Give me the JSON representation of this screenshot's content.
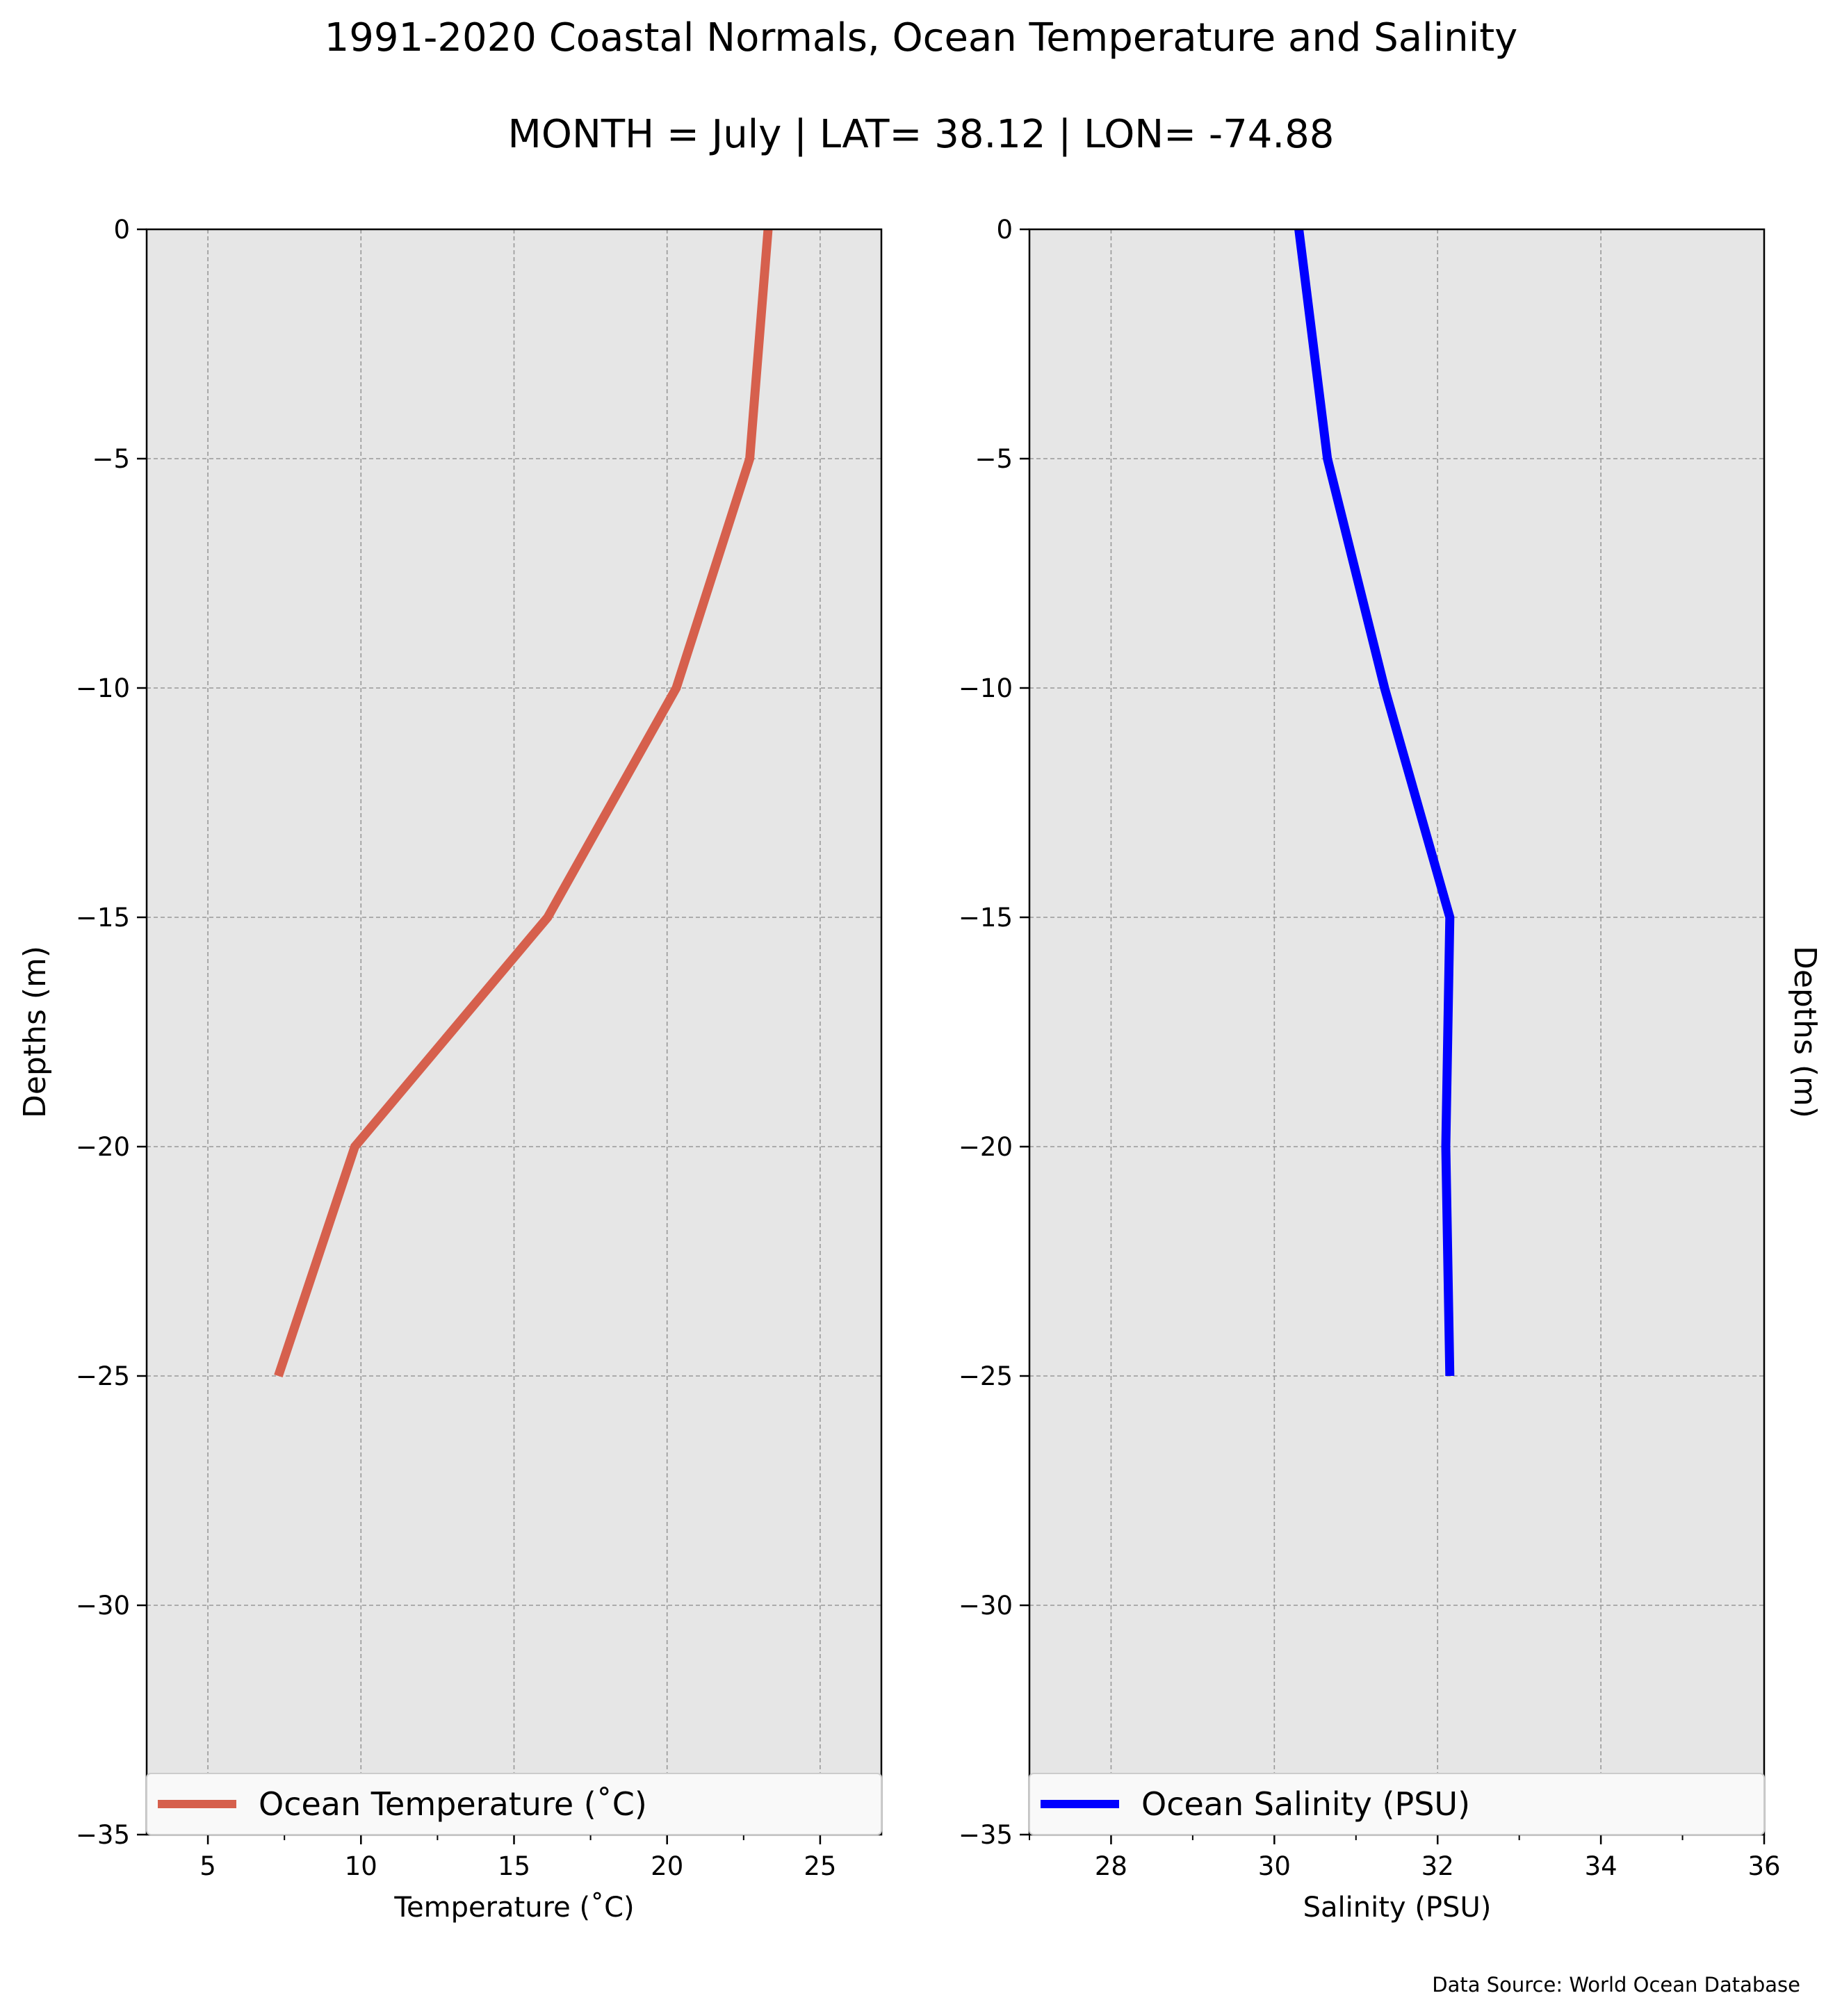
{
  "figure": {
    "title": "1991-2020 Coastal Normals, Ocean Temperature and Salinity",
    "subtitle": "MONTH = July | LAT= 38.12 | LON= -74.88",
    "footer": "Data Source: World Ocean Database"
  },
  "chart_data": [
    {
      "type": "line",
      "xlabel": "Temperature ($^\\circ$C)",
      "ylabel": "Depths (m)",
      "xlabel_display": "Temperature (˚C)",
      "xlim": [
        3,
        27
      ],
      "ylim": [
        -35,
        0
      ],
      "xticks": [
        5,
        10,
        15,
        20,
        25
      ],
      "xtick_labels": [
        "5",
        "10",
        "15",
        "20",
        "25"
      ],
      "yticks": [
        0,
        -5,
        -10,
        -15,
        -20,
        -25,
        -30,
        -35
      ],
      "ytick_labels": [
        "0",
        "−5",
        "−10",
        "−15",
        "−20",
        "−25",
        "−30",
        "−35"
      ],
      "grid": true,
      "legend": "lower center",
      "series": [
        {
          "name": "Ocean Temperature (˚C)",
          "color": "#d6604d",
          "x": [
            23.3,
            22.7,
            20.3,
            16.1,
            9.8,
            7.3
          ],
          "y": [
            0,
            -5,
            -10,
            -15,
            -20,
            -25
          ]
        }
      ]
    },
    {
      "type": "line",
      "xlabel": "Salinity (PSU)",
      "ylabel": "Depths (m)",
      "ylabel_side": "right",
      "xlim": [
        27,
        36
      ],
      "ylim": [
        -35,
        0
      ],
      "xticks": [
        28,
        30,
        32,
        34,
        36
      ],
      "xtick_labels": [
        "28",
        "30",
        "32",
        "34",
        "36"
      ],
      "yticks": [
        0,
        -5,
        -10,
        -15,
        -20,
        -25,
        -30,
        -35
      ],
      "ytick_labels": [
        "0",
        "−5",
        "−10",
        "−15",
        "−20",
        "−25",
        "−30",
        "−35"
      ],
      "grid": true,
      "legend": "lower center",
      "series": [
        {
          "name": "Ocean Salinity (PSU)",
          "color": "#0000ff",
          "x": [
            30.3,
            30.65,
            31.35,
            32.15,
            32.1,
            32.15
          ],
          "y": [
            0,
            -5,
            -10,
            -15,
            -20,
            -25
          ]
        }
      ]
    }
  ]
}
